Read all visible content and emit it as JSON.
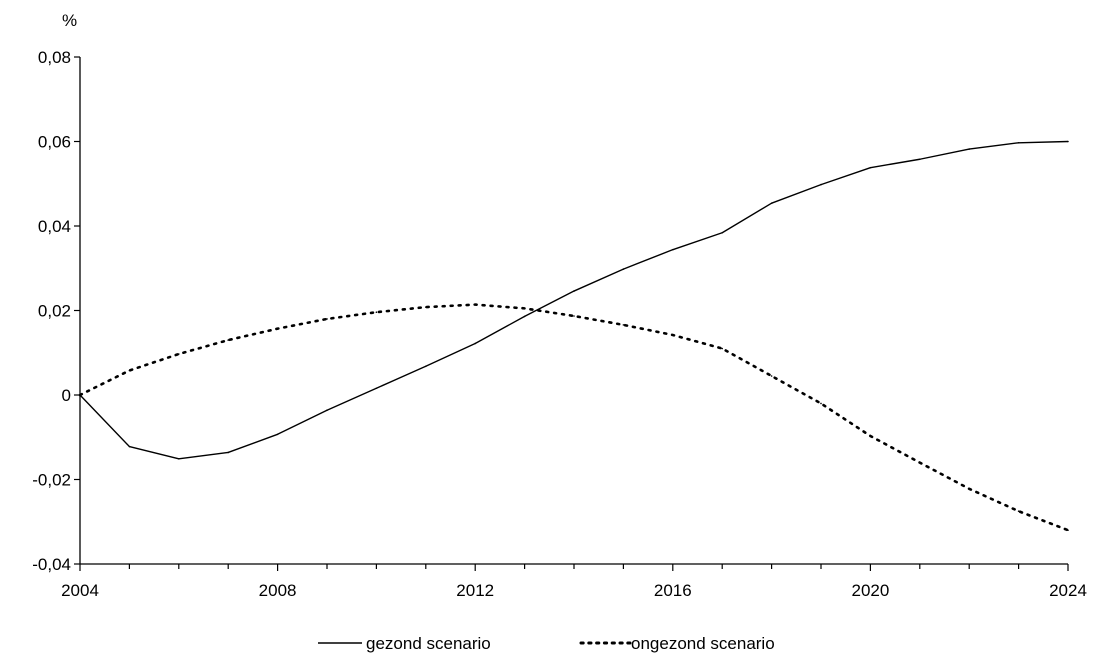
{
  "chart_data": {
    "type": "line",
    "title": "",
    "xlabel": "",
    "ylabel": "%",
    "x": [
      2004,
      2005,
      2006,
      2007,
      2008,
      2009,
      2010,
      2011,
      2012,
      2013,
      2014,
      2015,
      2016,
      2017,
      2018,
      2019,
      2020,
      2021,
      2022,
      2023,
      2024
    ],
    "xlim": [
      2004,
      2024
    ],
    "ylim": [
      -0.04,
      0.08
    ],
    "x_ticks": [
      2004,
      2008,
      2012,
      2016,
      2020,
      2024
    ],
    "x_tick_labels": [
      "2004",
      "2008",
      "2012",
      "2016",
      "2020",
      "2024"
    ],
    "y_ticks": [
      -0.04,
      -0.02,
      0,
      0.02,
      0.04,
      0.06,
      0.08
    ],
    "y_tick_labels": [
      "-0,04",
      "-0,02",
      "0",
      "0,02",
      "0,04",
      "0,06",
      "0,08"
    ],
    "grid": false,
    "legend_position": "bottom",
    "series": [
      {
        "name": "gezond scenario",
        "line_style": "solid",
        "color": "#000000",
        "values": [
          0.0,
          -0.0122,
          -0.0151,
          -0.0136,
          -0.0093,
          -0.0036,
          0.0016,
          0.0068,
          0.0122,
          0.0186,
          0.0246,
          0.0298,
          0.0344,
          0.0384,
          0.0454,
          0.0498,
          0.0538,
          0.0558,
          0.0582,
          0.0597,
          0.06
        ]
      },
      {
        "name": "ongezond scenario",
        "line_style": "dotted",
        "color": "#000000",
        "values": [
          0.0,
          0.0058,
          0.0097,
          0.013,
          0.0157,
          0.018,
          0.0196,
          0.0208,
          0.0214,
          0.0205,
          0.0187,
          0.0166,
          0.0142,
          0.011,
          0.0045,
          -0.002,
          -0.0097,
          -0.016,
          -0.0222,
          -0.0275,
          -0.032
        ]
      }
    ]
  }
}
